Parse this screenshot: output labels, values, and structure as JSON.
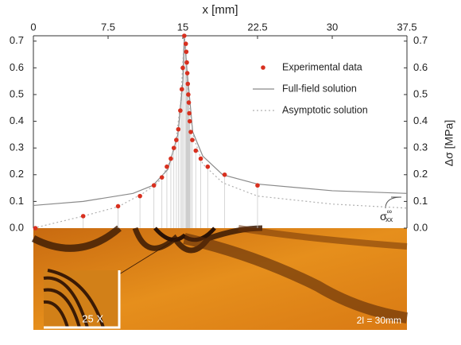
{
  "chart_data": {
    "type": "scatter",
    "x_label": "x [mm]",
    "y2_label": "Δσ [MPa]",
    "xlim": [
      0,
      37.5
    ],
    "xticks": [
      0,
      7.5,
      15,
      22.5,
      30,
      37.5
    ],
    "ylim": [
      0,
      0.72
    ],
    "yticks": [
      {
        "value": 0,
        "label": "0.0"
      },
      0.1,
      0.2,
      0.3,
      0.4,
      0.5,
      0.6,
      0.7
    ],
    "y2lim": [
      0,
      0.72
    ],
    "y2ticks": [
      {
        "value": 0,
        "label": "0.0"
      },
      0.1,
      0.2,
      0.3,
      0.4,
      0.5,
      0.6,
      0.7
    ],
    "legend": "upper right",
    "series": [
      {
        "name": "Experimental data",
        "kind": "points",
        "color": "#d8301f",
        "x": [
          0.2,
          5,
          8.5,
          10.7,
          12.1,
          12.9,
          13.4,
          13.8,
          14.1,
          14.35,
          14.55,
          14.75,
          14.9,
          15.0,
          15.15,
          15.3,
          15.35,
          15.4,
          15.45,
          15.5,
          15.55,
          15.6,
          15.65,
          15.7,
          15.8,
          15.95,
          16.3,
          16.8,
          17.5,
          19.2,
          22.5
        ],
        "values": [
          0,
          0.045,
          0.082,
          0.12,
          0.16,
          0.19,
          0.23,
          0.26,
          0.3,
          0.33,
          0.37,
          0.44,
          0.52,
          0.6,
          0.72,
          0.69,
          0.66,
          0.62,
          0.58,
          0.54,
          0.5,
          0.47,
          0.43,
          0.4,
          0.36,
          0.33,
          0.29,
          0.26,
          0.23,
          0.2,
          0.16
        ]
      },
      {
        "name": "Full-field solution",
        "kind": "solid",
        "color": "#8a8a8a",
        "x": [
          0,
          5,
          10,
          12,
          13.5,
          14.5,
          15,
          15.15,
          15.4,
          16,
          17,
          19,
          22.5,
          30,
          37.5
        ],
        "values": [
          0.085,
          0.1,
          0.13,
          0.16,
          0.22,
          0.35,
          0.55,
          0.72,
          0.6,
          0.36,
          0.27,
          0.2,
          0.165,
          0.14,
          0.13
        ]
      },
      {
        "name": "Asymptotic solution",
        "kind": "dotted",
        "color": "#b0b0b0",
        "x": [
          0,
          5,
          8.5,
          11,
          12.5,
          13.5,
          14.3,
          14.8,
          15.15,
          15.5,
          16,
          17,
          19,
          22.5,
          30,
          37.5
        ],
        "values": [
          0,
          0.045,
          0.08,
          0.13,
          0.17,
          0.23,
          0.32,
          0.48,
          0.72,
          0.52,
          0.35,
          0.24,
          0.17,
          0.12,
          0.09,
          0.075
        ]
      }
    ],
    "annotation": {
      "base": "σ",
      "superscript": "∞",
      "subscript": "xx"
    },
    "image_labels": [
      "25 X",
      "2l = 30mm"
    ]
  }
}
